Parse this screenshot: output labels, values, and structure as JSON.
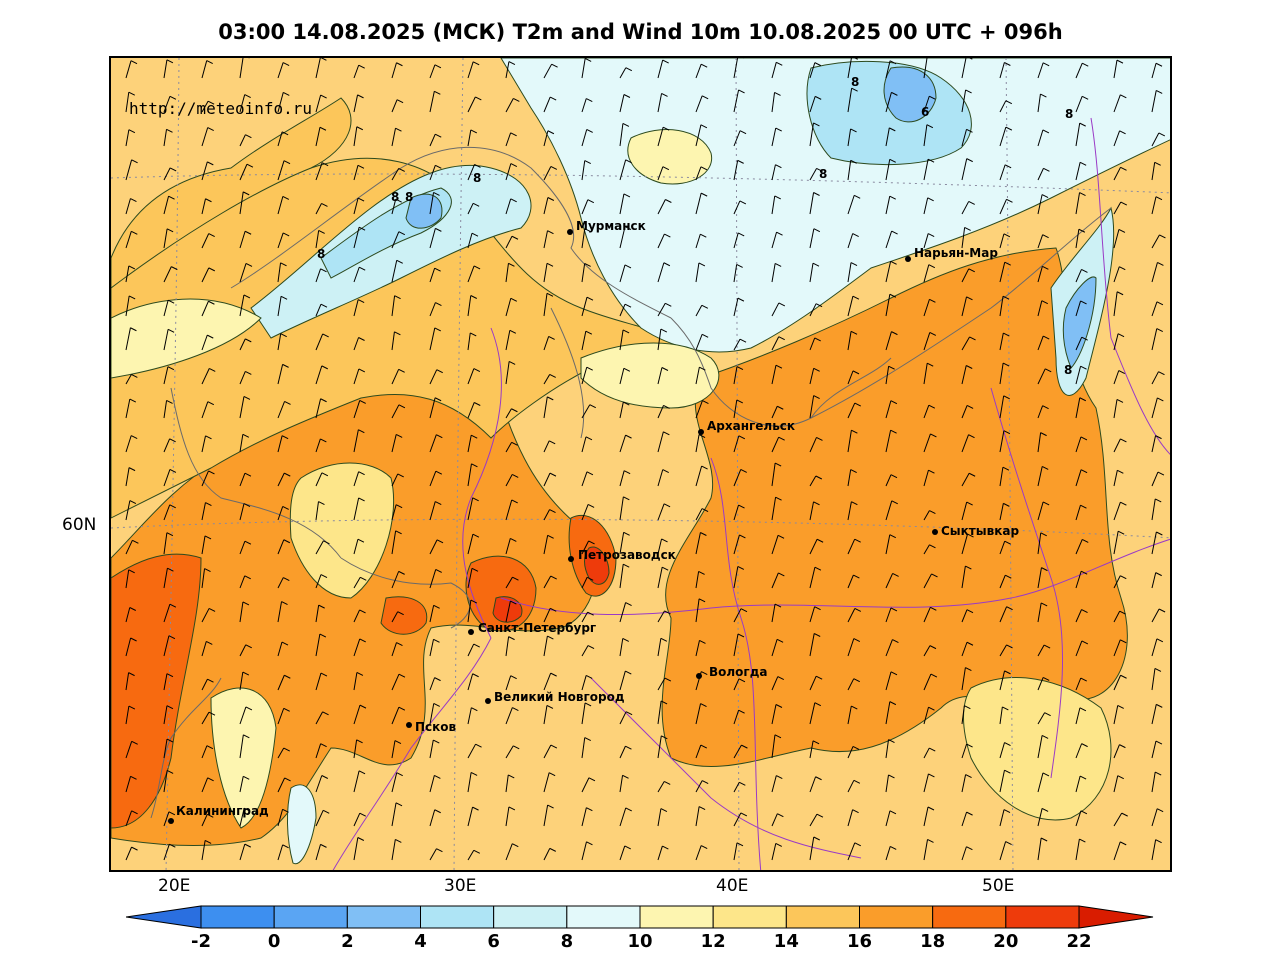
{
  "title": "03:00 14.08.2025 (МСК) T2m and Wind 10m 10.08.2025 00 UTC + 096h",
  "watermark": "http://meteoinfo.ru",
  "lat_labels": [
    "60N"
  ],
  "lon_labels": [
    "20E",
    "30E",
    "40E",
    "50E"
  ],
  "cities": [
    {
      "name": "Мурманск"
    },
    {
      "name": "Нарьян-Мар"
    },
    {
      "name": "Архангельск"
    },
    {
      "name": "Сыктывкар"
    },
    {
      "name": "Петрозаводск"
    },
    {
      "name": "Санкт-Петербург"
    },
    {
      "name": "Вологда"
    },
    {
      "name": "Великий Новгород"
    },
    {
      "name": "Псков"
    },
    {
      "name": "Калининград"
    }
  ],
  "contour_labels": [
    "8",
    "8",
    "8",
    "8",
    "8",
    "6",
    "8",
    "8",
    "8"
  ],
  "colorbar": {
    "ticks": [
      "-2",
      "0",
      "2",
      "4",
      "6",
      "8",
      "10",
      "12",
      "14",
      "16",
      "18",
      "20",
      "22"
    ],
    "colors": {
      "below": "#2a6fe0",
      "c_m2_0": "#3d8ff0",
      "c_0_2": "#5aa5f3",
      "c_2_4": "#80bff5",
      "c_4_6": "#aee4f5",
      "c_6_8": "#cdf1f5",
      "c_8_10": "#e3f9fa",
      "c_10_12": "#fdf5b0",
      "c_12_14": "#fde68a",
      "c_14_16": "#fcc65a",
      "c_16_18": "#fa9d2a",
      "c_18_20": "#f76a10",
      "c_20_22": "#ee3b0b",
      "above": "#d91c00"
    }
  }
}
